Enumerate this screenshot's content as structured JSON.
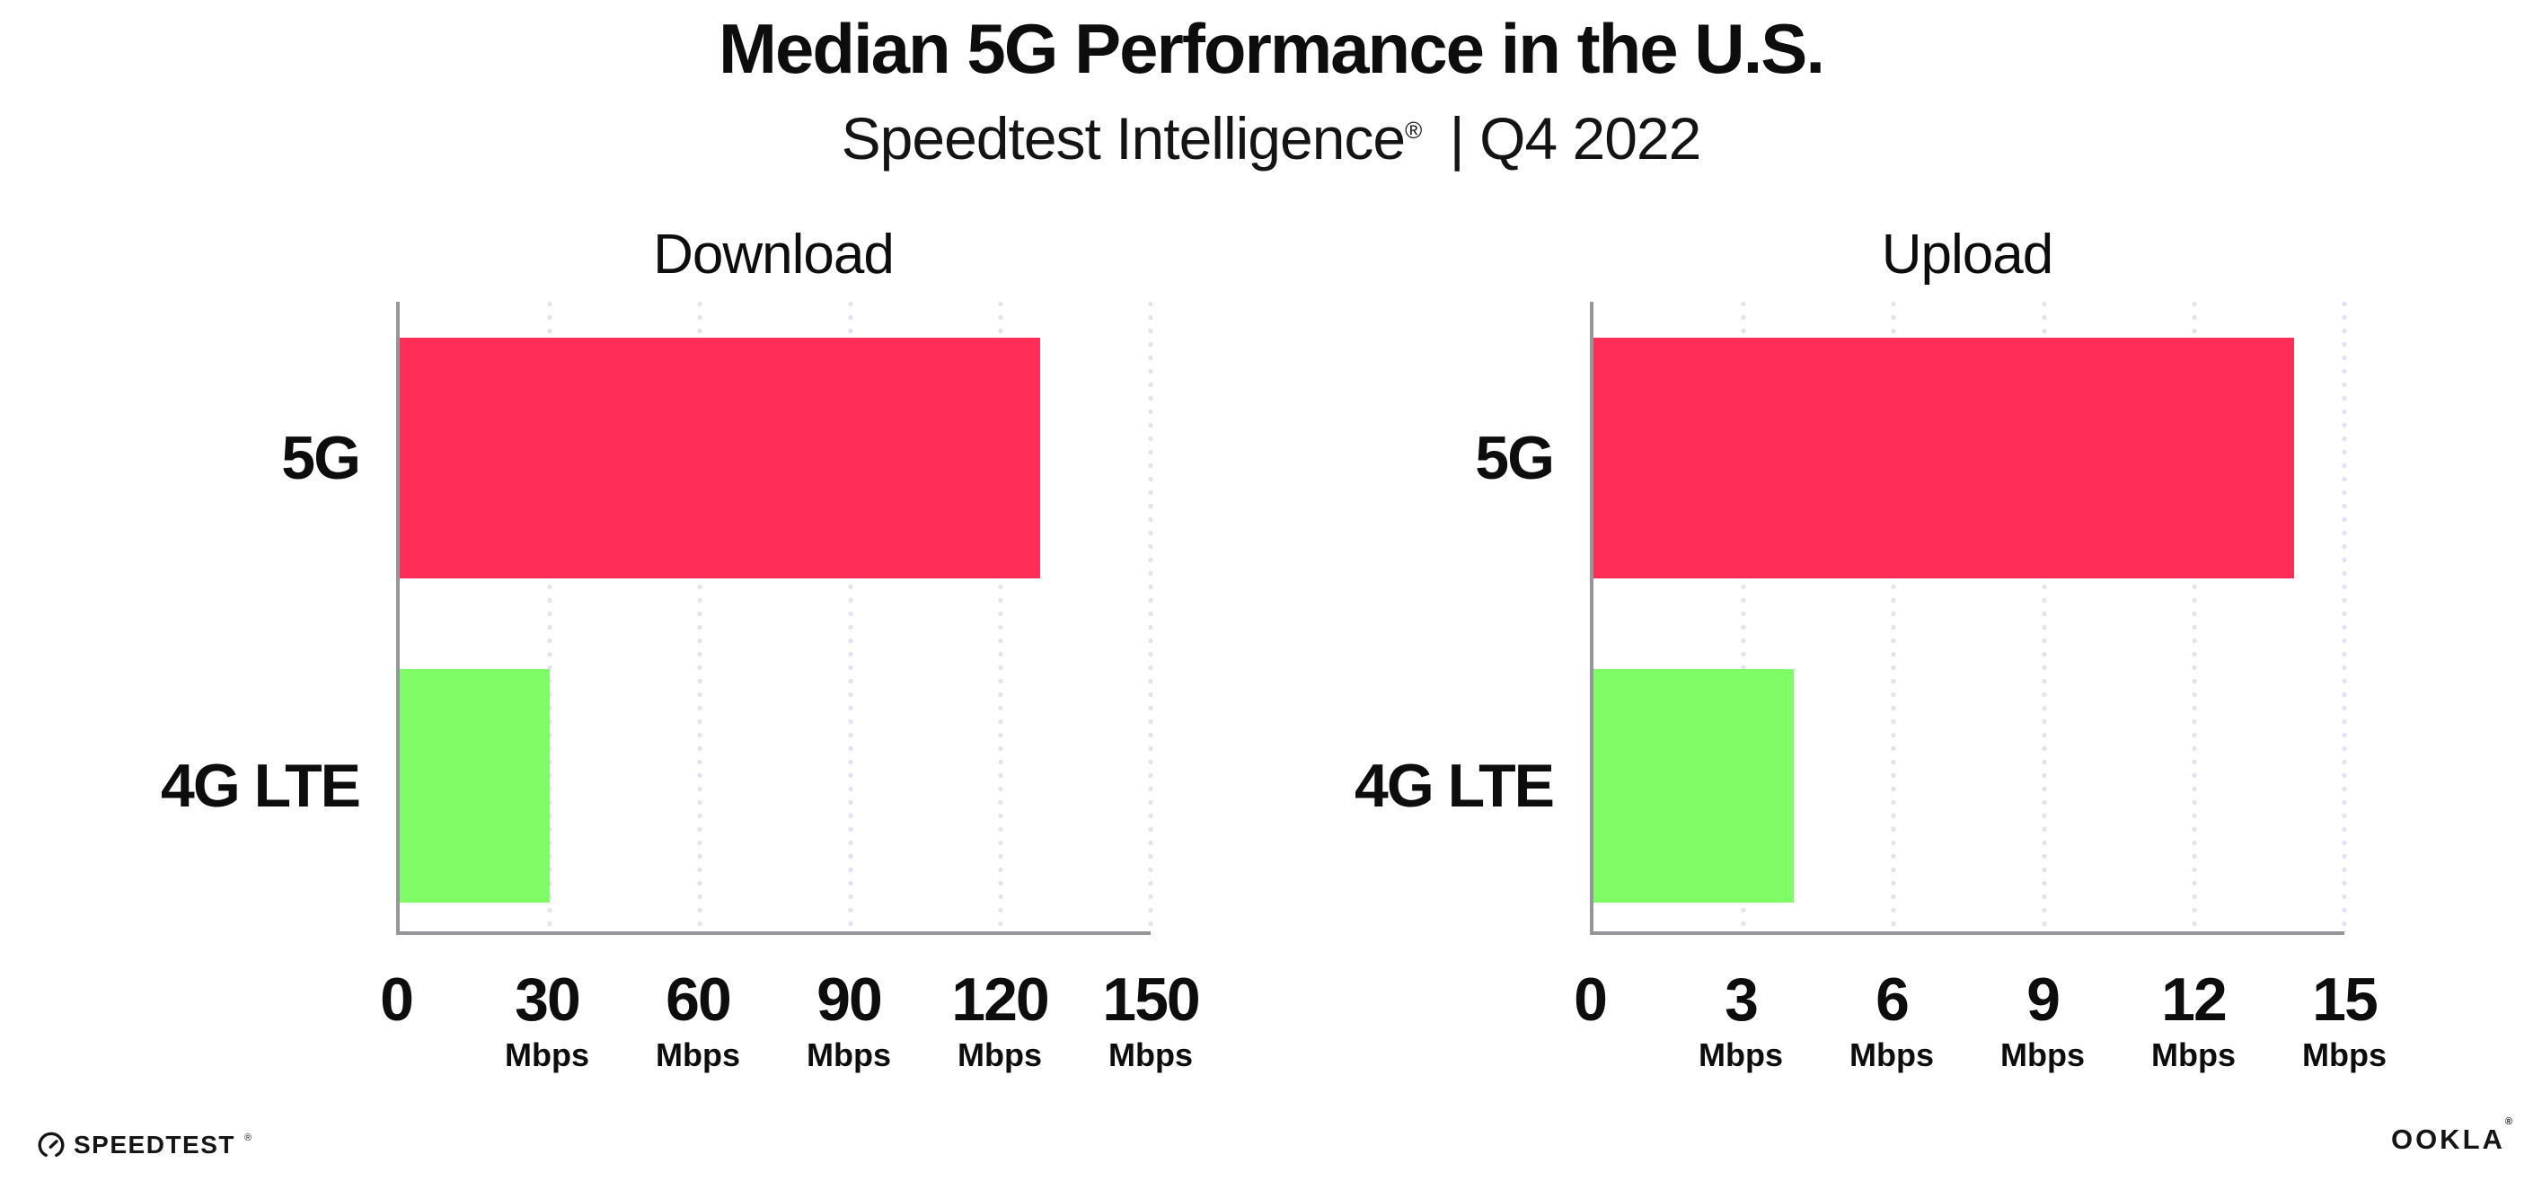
{
  "header": {
    "title": "Median 5G Performance in the U.S.",
    "subtitle_brand": "Speedtest Intelligence",
    "subtitle_mark": "®",
    "subtitle_rest": "| Q4 2022"
  },
  "colors": {
    "bar_5g": "#FF2D58",
    "bar_4g_lte": "#80FC66",
    "axis": "#95959c",
    "grid": "#e3e3ef",
    "text": "#0d0d0d"
  },
  "chart_data": [
    {
      "type": "bar",
      "orientation": "horizontal",
      "title": "Download",
      "categories": [
        "5G",
        "4G LTE"
      ],
      "values": [
        128,
        30
      ],
      "unit": "Mbps",
      "tick_unit": "Mbps",
      "xlim": [
        0,
        150
      ],
      "xticks": [
        0,
        30,
        60,
        90,
        120,
        150
      ],
      "bar_colors": [
        "#FF2D58",
        "#80FC66"
      ],
      "grid": "dotted-vertical",
      "legend": "none"
    },
    {
      "type": "bar",
      "orientation": "horizontal",
      "title": "Upload",
      "categories": [
        "5G",
        "4G LTE"
      ],
      "values": [
        14,
        4
      ],
      "unit": "Mbps",
      "tick_unit": "Mbps",
      "xlim": [
        0,
        15
      ],
      "xticks": [
        0,
        3,
        6,
        9,
        12,
        15
      ],
      "bar_colors": [
        "#FF2D58",
        "#80FC66"
      ],
      "grid": "dotted-vertical",
      "legend": "none"
    }
  ],
  "footer": {
    "speedtest": "SPEEDTEST",
    "speedtest_mark": "®",
    "ookla": "OOKLA",
    "ookla_mark": "®"
  }
}
